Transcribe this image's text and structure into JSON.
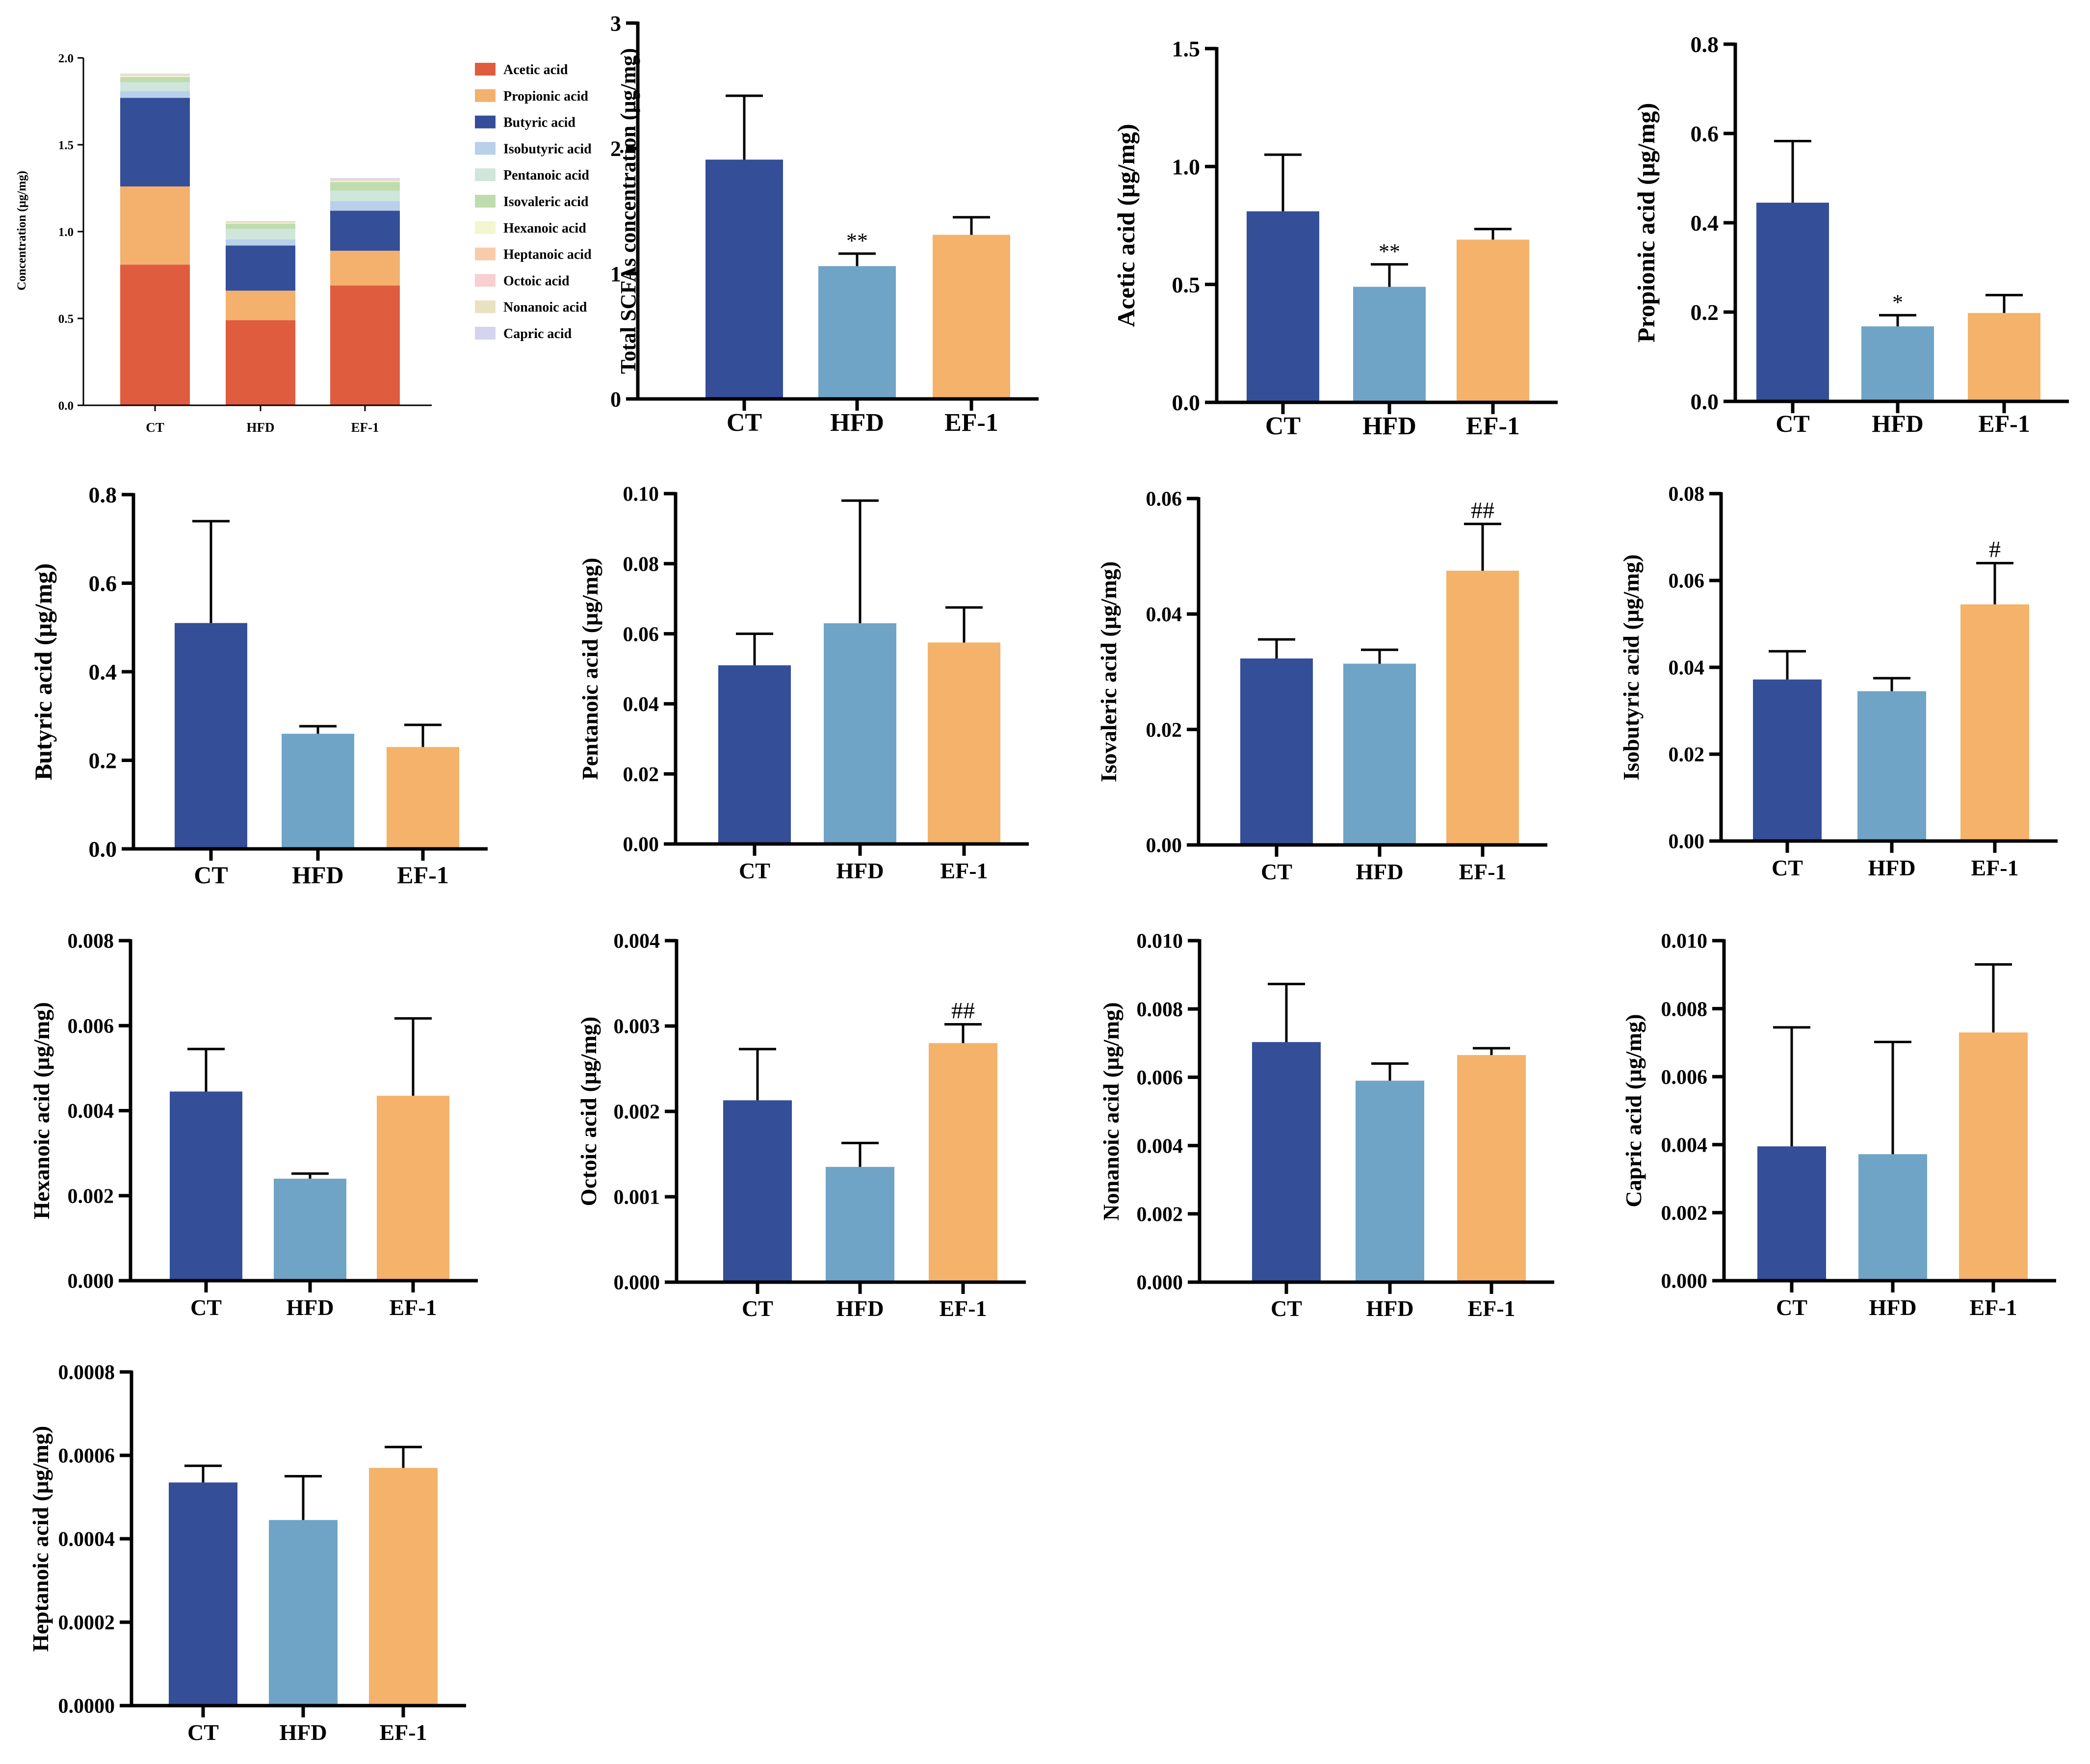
{
  "groups": [
    "CT",
    "HFD",
    "EF-1"
  ],
  "colors": {
    "CT": "#344e98",
    "HFD": "#6fa4c7",
    "EF-1": "#f4b26a"
  },
  "chart_data": [
    {
      "type": "stacked_bar",
      "title": "",
      "ylabel": "Concentration (μg/mg)",
      "ylim": [
        0,
        2.0
      ],
      "yticks": [
        "0.0",
        "0.5",
        "1.0",
        "1.5",
        "2.0"
      ],
      "categories": [
        "CT",
        "HFD",
        "EF-1"
      ],
      "series": [
        {
          "name": "Acetic acid",
          "color": "#e05c3e",
          "values": [
            0.81,
            0.49,
            0.69
          ]
        },
        {
          "name": "Propionic acid",
          "color": "#f3b16d",
          "values": [
            0.45,
            0.17,
            0.2
          ]
        },
        {
          "name": "Butyric acid",
          "color": "#344e98",
          "values": [
            0.51,
            0.26,
            0.23
          ]
        },
        {
          "name": "Isobutyric acid",
          "color": "#b8d0ea",
          "values": [
            0.04,
            0.035,
            0.055
          ]
        },
        {
          "name": "Pentanoic acid",
          "color": "#cfe6dc",
          "values": [
            0.05,
            0.06,
            0.06
          ]
        },
        {
          "name": "Isovaleric acid",
          "color": "#bfdcae",
          "values": [
            0.03,
            0.03,
            0.05
          ]
        },
        {
          "name": "Hexanoic acid",
          "color": "#f4f6cf",
          "values": [
            0.005,
            0.003,
            0.005
          ]
        },
        {
          "name": "Heptanoic acid",
          "color": "#f8ccaa",
          "values": [
            0.001,
            0.001,
            0.001
          ]
        },
        {
          "name": "Octoic acid",
          "color": "#f8d0d2",
          "values": [
            0.002,
            0.001,
            0.003
          ]
        },
        {
          "name": "Nonanoic acid",
          "color": "#e8e2c0",
          "values": [
            0.007,
            0.006,
            0.007
          ]
        },
        {
          "name": "Capric acid",
          "color": "#d4d4ee",
          "values": [
            0.004,
            0.004,
            0.007
          ]
        }
      ]
    },
    {
      "type": "bar",
      "ylabel": "Total SCFAs concentration (μg/mg)",
      "ylim": [
        0,
        3
      ],
      "yticks": [
        "0",
        "1",
        "2",
        "3"
      ],
      "categories": [
        "CT",
        "HFD",
        "EF-1"
      ],
      "values": [
        1.91,
        1.06,
        1.31
      ],
      "errors": [
        0.51,
        0.1,
        0.14
      ],
      "annotations": [
        "",
        "**",
        ""
      ]
    },
    {
      "type": "bar",
      "ylabel": "Acetic acid (μg/mg)",
      "ylim": [
        0,
        1.5
      ],
      "yticks": [
        "0.0",
        "0.5",
        "1.0",
        "1.5"
      ],
      "categories": [
        "CT",
        "HFD",
        "EF-1"
      ],
      "values": [
        0.81,
        0.49,
        0.69
      ],
      "errors": [
        0.24,
        0.095,
        0.045
      ],
      "annotations": [
        "",
        "**",
        ""
      ]
    },
    {
      "type": "bar",
      "ylabel": "Propionic acid (μg/mg)",
      "ylim": [
        0,
        0.8
      ],
      "yticks": [
        "0.0",
        "0.2",
        "0.4",
        "0.6",
        "0.8"
      ],
      "categories": [
        "CT",
        "HFD",
        "EF-1"
      ],
      "values": [
        0.445,
        0.168,
        0.198
      ],
      "errors": [
        0.138,
        0.025,
        0.04
      ],
      "annotations": [
        "",
        "*",
        ""
      ]
    },
    {
      "type": "bar",
      "ylabel": "Butyric acid (μg/mg)",
      "ylim": [
        0,
        0.8
      ],
      "yticks": [
        "0.0",
        "0.2",
        "0.4",
        "0.6",
        "0.8"
      ],
      "categories": [
        "CT",
        "HFD",
        "EF-1"
      ],
      "values": [
        0.51,
        0.26,
        0.23
      ],
      "errors": [
        0.23,
        0.017,
        0.05
      ],
      "annotations": [
        "",
        "",
        ""
      ]
    },
    {
      "type": "bar",
      "ylabel": "Pentanoic acid (μg/mg)",
      "ylim": [
        0,
        0.1
      ],
      "yticks": [
        "0.00",
        "0.02",
        "0.04",
        "0.06",
        "0.08",
        "0.10"
      ],
      "categories": [
        "CT",
        "HFD",
        "EF-1"
      ],
      "values": [
        0.051,
        0.063,
        0.0575
      ],
      "errors": [
        0.009,
        0.035,
        0.01
      ],
      "annotations": [
        "",
        "",
        ""
      ]
    },
    {
      "type": "bar",
      "ylabel": "Isovaleric acid (μg/mg)",
      "ylim": [
        0,
        0.06
      ],
      "yticks": [
        "0.00",
        "0.02",
        "0.04",
        "0.06"
      ],
      "categories": [
        "CT",
        "HFD",
        "EF-1"
      ],
      "values": [
        0.0323,
        0.0314,
        0.0475
      ],
      "errors": [
        0.0033,
        0.0024,
        0.0081
      ],
      "annotations": [
        "",
        "",
        "##"
      ]
    },
    {
      "type": "bar",
      "ylabel": "Isobutyric acid (μg/mg)",
      "ylim": [
        0,
        0.08
      ],
      "yticks": [
        "0.00",
        "0.02",
        "0.04",
        "0.06",
        "0.08"
      ],
      "categories": [
        "CT",
        "HFD",
        "EF-1"
      ],
      "values": [
        0.0372,
        0.0345,
        0.0545
      ],
      "errors": [
        0.0065,
        0.003,
        0.0095
      ],
      "annotations": [
        "",
        "",
        "#"
      ]
    },
    {
      "type": "bar",
      "ylabel": "Hexanoic acid (μg/mg)",
      "ylim": [
        0,
        0.008
      ],
      "yticks": [
        "0.000",
        "0.002",
        "0.004",
        "0.006",
        "0.008"
      ],
      "categories": [
        "CT",
        "HFD",
        "EF-1"
      ],
      "values": [
        0.00445,
        0.0024,
        0.00435
      ],
      "errors": [
        0.001,
        0.00012,
        0.00182
      ],
      "annotations": [
        "",
        "",
        ""
      ]
    },
    {
      "type": "bar",
      "ylabel": "Octoic acid (μg/mg)",
      "ylim": [
        0,
        0.004
      ],
      "yticks": [
        "0.000",
        "0.001",
        "0.002",
        "0.003",
        "0.004"
      ],
      "categories": [
        "CT",
        "HFD",
        "EF-1"
      ],
      "values": [
        0.00213,
        0.00135,
        0.0028
      ],
      "errors": [
        0.0006,
        0.00028,
        0.00022
      ],
      "annotations": [
        "",
        "",
        "##"
      ]
    },
    {
      "type": "bar",
      "ylabel": "Nonanoic acid (μg/mg)",
      "ylim": [
        0,
        0.01
      ],
      "yticks": [
        "0.000",
        "0.002",
        "0.004",
        "0.006",
        "0.008",
        "0.010"
      ],
      "categories": [
        "CT",
        "HFD",
        "EF-1"
      ],
      "values": [
        0.00703,
        0.0059,
        0.00665
      ],
      "errors": [
        0.0017,
        0.0005,
        0.0002
      ],
      "annotations": [
        "",
        "",
        ""
      ]
    },
    {
      "type": "bar",
      "ylabel": "Capric acid (μg/mg)",
      "ylim": [
        0,
        0.01
      ],
      "yticks": [
        "0.000",
        "0.002",
        "0.004",
        "0.006",
        "0.008",
        "0.010"
      ],
      "categories": [
        "CT",
        "HFD",
        "EF-1"
      ],
      "values": [
        0.00395,
        0.00372,
        0.0073
      ],
      "errors": [
        0.0035,
        0.0033,
        0.002
      ],
      "annotations": [
        "",
        "",
        ""
      ]
    },
    {
      "type": "bar",
      "ylabel": "Heptanoic acid (μg/mg)",
      "ylim": [
        0,
        0.0008
      ],
      "yticks": [
        "0.0000",
        "0.0002",
        "0.0004",
        "0.0006",
        "0.0008"
      ],
      "categories": [
        "CT",
        "HFD",
        "EF-1"
      ],
      "values": [
        0.000535,
        0.000445,
        0.00057
      ],
      "errors": [
        4e-05,
        0.000105,
        5e-05
      ],
      "annotations": [
        "",
        "",
        ""
      ]
    }
  ]
}
